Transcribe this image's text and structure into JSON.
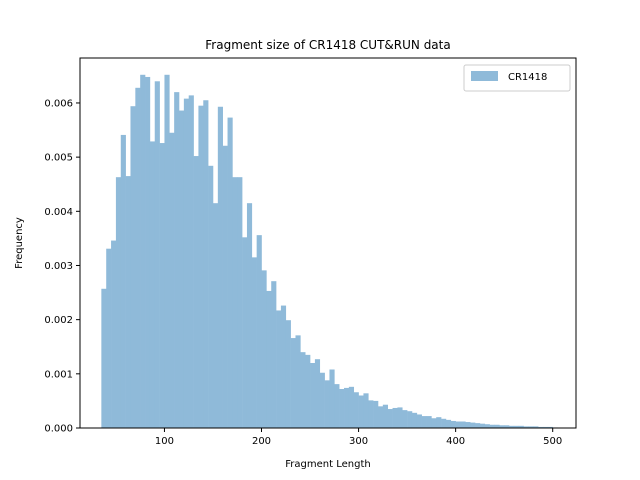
{
  "chart_data": {
    "type": "bar",
    "title": "Fragment size of CR1418 CUT&RUN data",
    "xlabel": "Fragment Length",
    "ylabel": "Frequency",
    "xlim": [
      13,
      524
    ],
    "ylim": [
      0,
      0.00683
    ],
    "xticks": [
      100,
      200,
      300,
      400,
      500
    ],
    "yticks": [
      0.0,
      0.001,
      0.002,
      0.003,
      0.004,
      0.005,
      0.006
    ],
    "ytick_labels": [
      "0.000",
      "0.001",
      "0.002",
      "0.003",
      "0.004",
      "0.005",
      "0.006"
    ],
    "legend": {
      "position": "top-right",
      "label": "CR1418"
    },
    "bar_color": "#8fbad9",
    "bin_start": 35,
    "bin_width": 5,
    "values": [
      0.00257,
      0.00331,
      0.00346,
      0.00463,
      0.00541,
      0.00465,
      0.00594,
      0.00628,
      0.00652,
      0.00648,
      0.00529,
      0.0064,
      0.00526,
      0.00652,
      0.00545,
      0.0062,
      0.00586,
      0.00608,
      0.00614,
      0.00502,
      0.00595,
      0.00605,
      0.00484,
      0.00415,
      0.00593,
      0.00521,
      0.00573,
      0.00463,
      0.00463,
      0.00352,
      0.00415,
      0.00315,
      0.00356,
      0.00291,
      0.00253,
      0.00271,
      0.00217,
      0.00226,
      0.00199,
      0.00166,
      0.00171,
      0.0014,
      0.00135,
      0.0012,
      0.00127,
      0.00102,
      0.00088,
      0.00108,
      0.00081,
      0.00072,
      0.00074,
      0.00076,
      0.00066,
      0.0006,
      0.00064,
      0.00051,
      0.0005,
      0.0004,
      0.00043,
      0.00035,
      0.00037,
      0.00038,
      0.00033,
      0.00031,
      0.00028,
      0.00025,
      0.00022,
      0.00022,
      0.00018,
      0.0002,
      0.00017,
      0.00015,
      0.00013,
      0.00012,
      0.00012,
      0.00011,
      0.0001,
      9e-05,
      8e-05,
      7e-05,
      6e-05,
      6e-05,
      5e-05,
      5e-05,
      4e-05,
      4e-05,
      4e-05,
      3e-05,
      3e-05,
      3e-05,
      2e-05,
      2e-05,
      2e-05,
      1e-05
    ]
  }
}
